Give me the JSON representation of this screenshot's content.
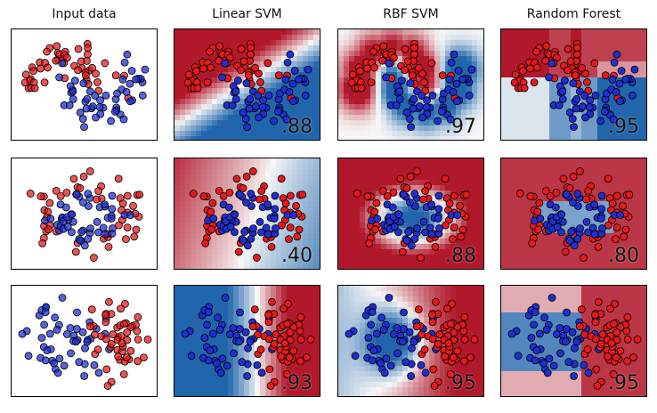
{
  "colors": {
    "class_a": "#e41a1c",
    "class_b": "#1f2fd0",
    "cmap_red": "#b2182b",
    "cmap_blue": "#2166ac",
    "cmap_mid": "#f7f7f7"
  },
  "titles": [
    "Input data",
    "Linear SVM",
    "RBF SVM",
    "Random Forest"
  ],
  "chart_data": [
    {
      "type": "scatter",
      "dataset": "moons",
      "classifier": "Input data",
      "score": ""
    },
    {
      "type": "heatmap",
      "dataset": "moons",
      "classifier": "Linear SVM",
      "score": ".88"
    },
    {
      "type": "heatmap",
      "dataset": "moons",
      "classifier": "RBF SVM",
      "score": ".97"
    },
    {
      "type": "heatmap",
      "dataset": "moons",
      "classifier": "Random Forest",
      "score": ".95"
    },
    {
      "type": "scatter",
      "dataset": "circles",
      "classifier": "Input data",
      "score": ""
    },
    {
      "type": "heatmap",
      "dataset": "circles",
      "classifier": "Linear SVM",
      "score": ".40"
    },
    {
      "type": "heatmap",
      "dataset": "circles",
      "classifier": "RBF SVM",
      "score": ".88"
    },
    {
      "type": "heatmap",
      "dataset": "circles",
      "classifier": "Random Forest",
      "score": ".80"
    },
    {
      "type": "scatter",
      "dataset": "linearly_separable",
      "classifier": "Input data",
      "score": ""
    },
    {
      "type": "heatmap",
      "dataset": "linearly_separable",
      "classifier": "Linear SVM",
      "score": ".93"
    },
    {
      "type": "heatmap",
      "dataset": "linearly_separable",
      "classifier": "RBF SVM",
      "score": ".95"
    },
    {
      "type": "heatmap",
      "dataset": "linearly_separable",
      "classifier": "Random Forest",
      "score": ".95"
    }
  ]
}
